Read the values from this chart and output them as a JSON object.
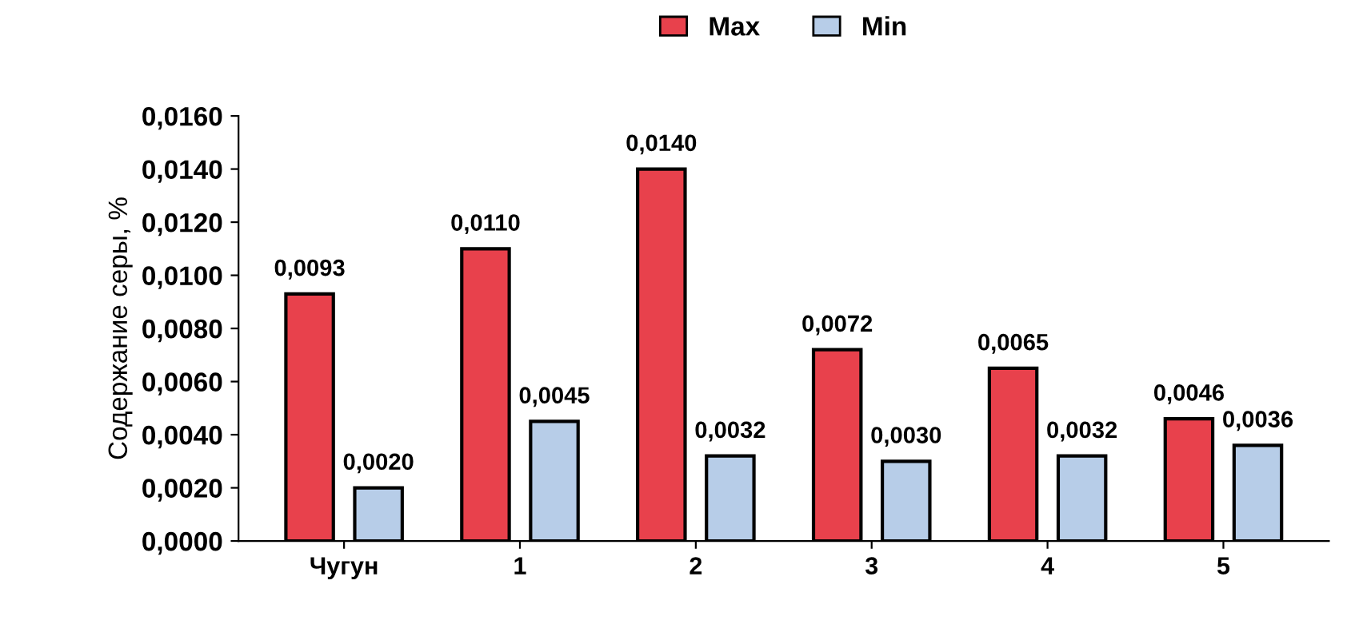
{
  "chart_data": {
    "type": "bar",
    "ylabel": "Содержание серы, %",
    "categories": [
      "Чугун",
      "1",
      "2",
      "3",
      "4",
      "5"
    ],
    "series": [
      {
        "name": "Max",
        "color": "#e8414c",
        "values": [
          0.0093,
          0.011,
          0.014,
          0.0072,
          0.0065,
          0.0046
        ],
        "value_labels": [
          "0,0093",
          "0,0110",
          "0,0140",
          "0,0072",
          "0,0065",
          "0,0046"
        ]
      },
      {
        "name": "Min",
        "color": "#b7cde8",
        "values": [
          0.002,
          0.0045,
          0.0032,
          0.003,
          0.0032,
          0.0036
        ],
        "value_labels": [
          "0,0020",
          "0,0045",
          "0,0032",
          "0,0030",
          "0,0032",
          "0,0036"
        ]
      }
    ],
    "ylim": [
      0,
      0.016
    ],
    "yticks": [
      {
        "value": 0,
        "label": "0,0000"
      },
      {
        "value": 0.002,
        "label": "0,0020"
      },
      {
        "value": 0.004,
        "label": "0,0040"
      },
      {
        "value": 0.006,
        "label": "0,0060"
      },
      {
        "value": 0.008,
        "label": "0,0080"
      },
      {
        "value": 0.01,
        "label": "0,0100"
      },
      {
        "value": 0.012,
        "label": "0,0120"
      },
      {
        "value": 0.014,
        "label": "0,0140"
      },
      {
        "value": 0.016,
        "label": "0,0160"
      }
    ],
    "legend": "top",
    "grid": false
  }
}
